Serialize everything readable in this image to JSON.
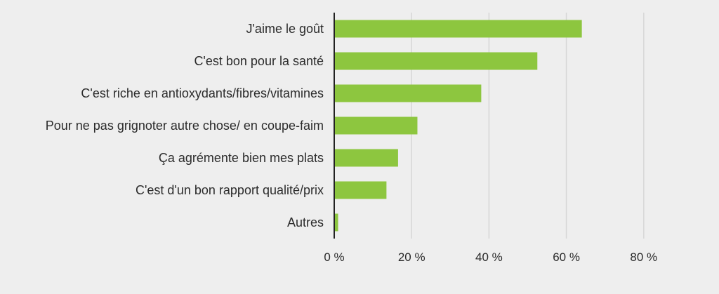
{
  "chart_data": {
    "type": "bar",
    "orientation": "horizontal",
    "title": "",
    "xlabel": "",
    "ylabel": "",
    "categories": [
      "J'aime le goût",
      "C'est bon pour la santé",
      "C'est riche en antioxydants/fibres/vitamines",
      "Pour ne pas grignoter autre chose/ en coupe-faim",
      "Ça agrémente bien mes plats",
      "C'est d'un bon rapport qualité/prix",
      "Autres"
    ],
    "values": [
      64,
      52.5,
      38,
      21.5,
      16.5,
      13.5,
      1
    ],
    "xlim": [
      0,
      80
    ],
    "xticks": [
      0,
      20,
      40,
      60,
      80
    ],
    "tick_labels": [
      "0 %",
      "20 %",
      "40 %",
      "60 %",
      "80 %"
    ],
    "bar_color": "#8dc63f",
    "grid": true,
    "legend": "none"
  }
}
